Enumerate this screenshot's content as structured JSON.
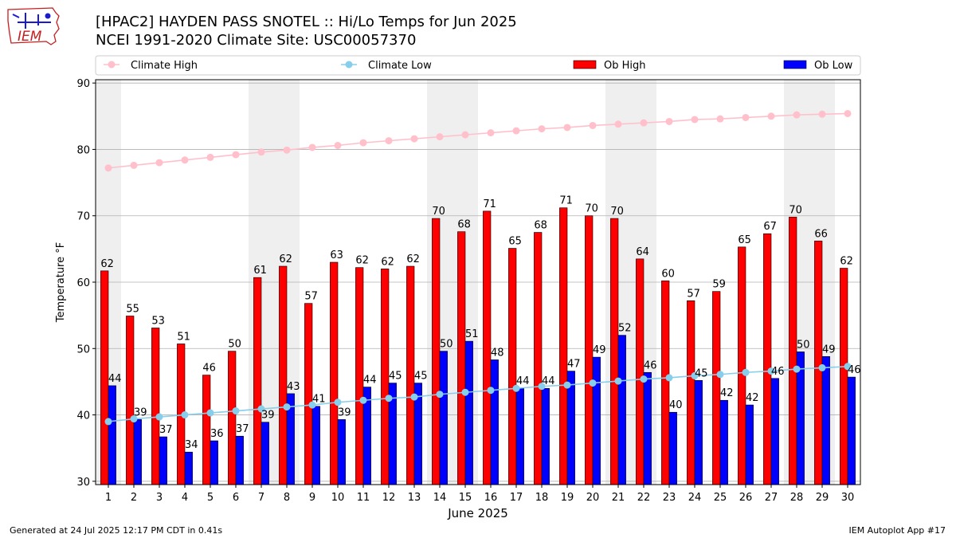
{
  "header": {
    "title_line1": "[HPAC2] HAYDEN PASS SNOTEL :: Hi/Lo Temps for Jun 2025",
    "title_line2": "NCEI 1991-2020 Climate Site: USC00057370",
    "logo_text": "IEM"
  },
  "footer": {
    "generated": "Generated at 24 Jul 2025 12:17 PM CDT in 0.41s",
    "app": "IEM Autoplot App #17"
  },
  "chart_data": {
    "type": "bar",
    "xlabel": "June 2025",
    "ylabel": "Temperature °F",
    "ylim": [
      29.5,
      90.5
    ],
    "yticks": [
      30,
      40,
      50,
      60,
      70,
      80,
      90
    ],
    "categories": [
      "1",
      "2",
      "3",
      "4",
      "5",
      "6",
      "7",
      "8",
      "9",
      "10",
      "11",
      "12",
      "13",
      "14",
      "15",
      "16",
      "17",
      "18",
      "19",
      "20",
      "21",
      "22",
      "23",
      "24",
      "25",
      "26",
      "27",
      "28",
      "29",
      "30"
    ],
    "weekend_days": [
      1,
      7,
      8,
      14,
      15,
      21,
      22,
      28,
      29
    ],
    "legend_placement": "top",
    "grid": "horizontal",
    "series": [
      {
        "name": "Climate High",
        "kind": "line",
        "color": "#ffc0cb",
        "values": [
          77.2,
          77.6,
          78.0,
          78.4,
          78.8,
          79.2,
          79.6,
          79.9,
          80.3,
          80.6,
          81.0,
          81.3,
          81.6,
          81.9,
          82.2,
          82.5,
          82.8,
          83.1,
          83.3,
          83.6,
          83.8,
          84.0,
          84.2,
          84.5,
          84.6,
          84.8,
          85.0,
          85.2,
          85.3,
          85.4
        ]
      },
      {
        "name": "Climate Low",
        "kind": "line",
        "color": "#87ceeb",
        "values": [
          39.0,
          39.4,
          39.7,
          40.0,
          40.3,
          40.6,
          40.9,
          41.2,
          41.5,
          41.9,
          42.2,
          42.5,
          42.7,
          43.1,
          43.4,
          43.7,
          44.0,
          44.3,
          44.5,
          44.8,
          45.1,
          45.4,
          45.6,
          45.9,
          46.1,
          46.4,
          46.6,
          46.9,
          47.1,
          47.3
        ]
      },
      {
        "name": "Ob High",
        "kind": "bar",
        "color": "#ff0000",
        "values": [
          61.7,
          54.9,
          53.1,
          50.7,
          46.0,
          49.6,
          60.7,
          62.4,
          56.8,
          63.0,
          62.2,
          62.0,
          62.4,
          69.6,
          67.6,
          70.7,
          65.1,
          67.5,
          71.2,
          70.0,
          69.6,
          63.5,
          60.2,
          57.2,
          58.6,
          65.3,
          67.3,
          69.8,
          66.2,
          62.1
        ],
        "labels": [
          "62",
          "55",
          "53",
          "51",
          "46",
          "50",
          "61",
          "62",
          "57",
          "63",
          "62",
          "62",
          "62",
          "70",
          "68",
          "71",
          "65",
          "68",
          "71",
          "70",
          "70",
          "64",
          "60",
          "57",
          "59",
          "65",
          "67",
          "70",
          "66",
          "62"
        ]
      },
      {
        "name": "Ob Low",
        "kind": "bar",
        "color": "#0000ff",
        "values": [
          44.4,
          39.3,
          36.7,
          34.4,
          36.1,
          36.8,
          38.9,
          43.2,
          41.3,
          39.3,
          44.2,
          44.8,
          44.8,
          49.6,
          51.1,
          48.3,
          44.0,
          44.0,
          46.6,
          48.7,
          52.0,
          46.4,
          40.4,
          45.2,
          42.2,
          41.5,
          45.5,
          49.5,
          48.8,
          45.7
        ],
        "labels": [
          "44",
          "39",
          "37",
          "34",
          "36",
          "37",
          "39",
          "43",
          "41",
          "39",
          "44",
          "45",
          "45",
          "50",
          "51",
          "48",
          "44",
          "44",
          "47",
          "49",
          "52",
          "46",
          "40",
          "45",
          "42",
          "42",
          "46",
          "50",
          "49",
          "46"
        ]
      }
    ]
  }
}
